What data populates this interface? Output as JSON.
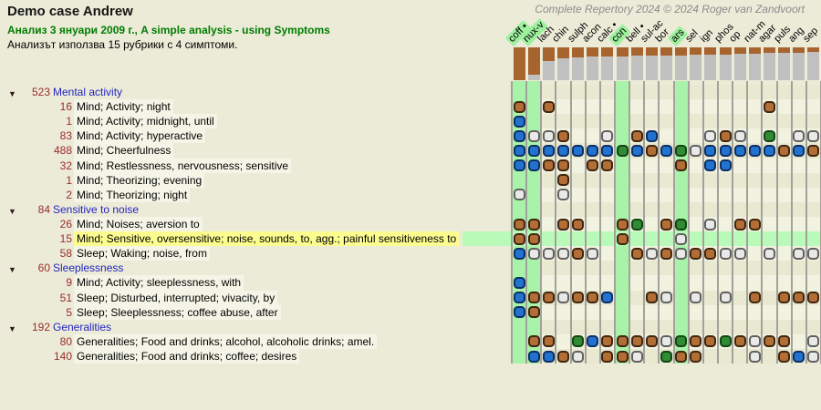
{
  "header": {
    "title": "Demo case Andrew",
    "subtitle": "Анализ 3 януари 2009 г., A simple analysis - using Symptoms",
    "info": "Анализът използва 15 рубрики с 4 симптоми.",
    "copyright": "Complete Repertory 2024 © 2024 Roger van Zandvoort"
  },
  "colors": {
    "page_bg": "#ebebd8",
    "stripe_even": "#e9e9d2",
    "stripe_odd": "#f2f2e0",
    "column_highlight_green": "#a9f2a9",
    "header_highlight_green": "#9df09d",
    "selected_row_yellow": "#fcfc8f",
    "selected_row_green": "#b9fab9",
    "grid_line": "#a2a29a",
    "bar_brown": "#a8642f",
    "bar_grey": "#c0c0c0",
    "count_text": "#9a2b2b",
    "group_text": "#2424c0",
    "subtitle_green": "#007d00",
    "grades": {
      "brown": {
        "fill": "#b26e35",
        "border": "#402611"
      },
      "blue": {
        "fill": "#2173cf",
        "border": "#0e2f63"
      },
      "white": {
        "fill": "#e9e9e7",
        "border": "#606060"
      },
      "green": {
        "fill": "#2f8c34",
        "border": "#144512"
      }
    }
  },
  "remedies": [
    {
      "abbr": "coff",
      "bullet": true,
      "highlighted": true,
      "bar": 1.0
    },
    {
      "abbr": "nux-v",
      "bullet": false,
      "highlighted": true,
      "bar": 0.83
    },
    {
      "abbr": "lach",
      "bullet": false,
      "highlighted": false,
      "bar": 0.42
    },
    {
      "abbr": "chin",
      "bullet": false,
      "highlighted": false,
      "bar": 0.33
    },
    {
      "abbr": "sulph",
      "bullet": false,
      "highlighted": false,
      "bar": 0.3
    },
    {
      "abbr": "acon",
      "bullet": false,
      "highlighted": false,
      "bar": 0.28
    },
    {
      "abbr": "calc",
      "bullet": true,
      "highlighted": false,
      "bar": 0.28
    },
    {
      "abbr": "con",
      "bullet": false,
      "highlighted": true,
      "bar": 0.27
    },
    {
      "abbr": "bell",
      "bullet": true,
      "highlighted": false,
      "bar": 0.26
    },
    {
      "abbr": "sul-ac",
      "bullet": false,
      "highlighted": false,
      "bar": 0.25
    },
    {
      "abbr": "bor",
      "bullet": false,
      "highlighted": false,
      "bar": 0.25
    },
    {
      "abbr": "ars",
      "bullet": false,
      "highlighted": true,
      "bar": 0.24
    },
    {
      "abbr": "sel",
      "bullet": false,
      "highlighted": false,
      "bar": 0.22
    },
    {
      "abbr": "ign",
      "bullet": false,
      "highlighted": false,
      "bar": 0.22
    },
    {
      "abbr": "phos",
      "bullet": false,
      "highlighted": false,
      "bar": 0.21
    },
    {
      "abbr": "op",
      "bullet": false,
      "highlighted": false,
      "bar": 0.2
    },
    {
      "abbr": "nat-m",
      "bullet": false,
      "highlighted": false,
      "bar": 0.19
    },
    {
      "abbr": "agar",
      "bullet": false,
      "highlighted": false,
      "bar": 0.18
    },
    {
      "abbr": "puls",
      "bullet": false,
      "highlighted": false,
      "bar": 0.17
    },
    {
      "abbr": "ang",
      "bullet": false,
      "highlighted": false,
      "bar": 0.16
    },
    {
      "abbr": "sep",
      "bullet": false,
      "highlighted": false,
      "bar": 0.15
    }
  ],
  "groups": [
    {
      "count": 523,
      "label": "Mental activity",
      "rubrics": [
        {
          "count": 16,
          "text": "Mind; Activity; night",
          "dots": [
            [
              1,
              "brown"
            ],
            [
              3,
              "brown"
            ],
            [
              18,
              "brown"
            ]
          ]
        },
        {
          "count": 1,
          "text": "Mind; Activity; midnight, until",
          "dots": [
            [
              1,
              "blue"
            ]
          ]
        },
        {
          "count": 83,
          "text": "Mind; Activity; hyperactive",
          "dots": [
            [
              1,
              "blue"
            ],
            [
              2,
              "white"
            ],
            [
              3,
              "white"
            ],
            [
              4,
              "brown"
            ],
            [
              7,
              "white"
            ],
            [
              9,
              "brown"
            ],
            [
              10,
              "blue"
            ],
            [
              14,
              "white"
            ],
            [
              15,
              "brown"
            ],
            [
              16,
              "white"
            ],
            [
              18,
              "green"
            ],
            [
              20,
              "white"
            ],
            [
              21,
              "white"
            ]
          ]
        },
        {
          "count": 488,
          "text": "Mind; Cheerfulness",
          "dots": [
            [
              1,
              "blue"
            ],
            [
              2,
              "blue"
            ],
            [
              3,
              "blue"
            ],
            [
              4,
              "blue"
            ],
            [
              5,
              "blue"
            ],
            [
              6,
              "blue"
            ],
            [
              7,
              "blue"
            ],
            [
              8,
              "green"
            ],
            [
              9,
              "blue"
            ],
            [
              10,
              "brown"
            ],
            [
              11,
              "blue"
            ],
            [
              12,
              "green"
            ],
            [
              13,
              "white"
            ],
            [
              14,
              "blue"
            ],
            [
              15,
              "blue"
            ],
            [
              16,
              "blue"
            ],
            [
              17,
              "blue"
            ],
            [
              18,
              "blue"
            ],
            [
              19,
              "brown"
            ],
            [
              20,
              "blue"
            ],
            [
              21,
              "brown"
            ]
          ]
        },
        {
          "count": 32,
          "text": "Mind; Restlessness, nervousness; sensitive",
          "dots": [
            [
              1,
              "blue"
            ],
            [
              2,
              "blue"
            ],
            [
              3,
              "brown"
            ],
            [
              4,
              "brown"
            ],
            [
              6,
              "brown"
            ],
            [
              7,
              "brown"
            ],
            [
              12,
              "brown"
            ],
            [
              14,
              "blue"
            ],
            [
              15,
              "blue"
            ]
          ]
        },
        {
          "count": 1,
          "text": "Mind; Theorizing; evening",
          "dots": [
            [
              4,
              "brown"
            ]
          ]
        },
        {
          "count": 2,
          "text": "Mind; Theorizing; night",
          "dots": [
            [
              1,
              "white"
            ],
            [
              4,
              "white"
            ]
          ]
        }
      ]
    },
    {
      "count": 84,
      "label": "Sensitive to noise",
      "rubrics": [
        {
          "count": 26,
          "text": "Mind; Noises; aversion to",
          "dots": [
            [
              1,
              "brown"
            ],
            [
              2,
              "brown"
            ],
            [
              4,
              "brown"
            ],
            [
              5,
              "brown"
            ],
            [
              8,
              "brown"
            ],
            [
              9,
              "green"
            ],
            [
              11,
              "brown"
            ],
            [
              12,
              "green"
            ],
            [
              14,
              "white"
            ],
            [
              16,
              "brown"
            ],
            [
              17,
              "brown"
            ]
          ]
        },
        {
          "count": 15,
          "text": "Mind; Sensitive, oversensitive; noise, sounds, to, agg.; painful sensitiveness to",
          "highlighted": true,
          "dots": [
            [
              1,
              "brown"
            ],
            [
              2,
              "brown"
            ],
            [
              8,
              "brown"
            ],
            [
              12,
              "white"
            ]
          ]
        },
        {
          "count": 58,
          "text": "Sleep; Waking; noise, from",
          "dots": [
            [
              1,
              "blue"
            ],
            [
              2,
              "white"
            ],
            [
              3,
              "white"
            ],
            [
              4,
              "white"
            ],
            [
              5,
              "brown"
            ],
            [
              6,
              "white"
            ],
            [
              9,
              "brown"
            ],
            [
              10,
              "white"
            ],
            [
              11,
              "brown"
            ],
            [
              12,
              "white"
            ],
            [
              13,
              "brown"
            ],
            [
              14,
              "brown"
            ],
            [
              15,
              "white"
            ],
            [
              16,
              "white"
            ],
            [
              18,
              "white"
            ],
            [
              20,
              "white"
            ],
            [
              21,
              "white"
            ]
          ]
        }
      ]
    },
    {
      "count": 60,
      "label": "Sleeplessness",
      "rubrics": [
        {
          "count": 9,
          "text": "Mind; Activity; sleeplessness, with",
          "dots": [
            [
              1,
              "blue"
            ]
          ]
        },
        {
          "count": 51,
          "text": "Sleep; Disturbed, interrupted; vivacity, by",
          "dots": [
            [
              1,
              "blue"
            ],
            [
              2,
              "brown"
            ],
            [
              3,
              "brown"
            ],
            [
              4,
              "white"
            ],
            [
              5,
              "brown"
            ],
            [
              6,
              "brown"
            ],
            [
              7,
              "blue"
            ],
            [
              10,
              "brown"
            ],
            [
              11,
              "white"
            ],
            [
              13,
              "white"
            ],
            [
              15,
              "white"
            ],
            [
              17,
              "brown"
            ],
            [
              19,
              "brown"
            ],
            [
              20,
              "brown"
            ],
            [
              21,
              "brown"
            ]
          ]
        },
        {
          "count": 5,
          "text": "Sleep; Sleeplessness; coffee abuse, after",
          "dots": [
            [
              1,
              "blue"
            ],
            [
              2,
              "brown"
            ]
          ]
        }
      ]
    },
    {
      "count": 192,
      "label": "Generalities",
      "rubrics": [
        {
          "count": 80,
          "text": "Generalities; Food and drinks; alcohol, alcoholic drinks; amel.",
          "dots": [
            [
              2,
              "brown"
            ],
            [
              3,
              "brown"
            ],
            [
              5,
              "green"
            ],
            [
              6,
              "blue"
            ],
            [
              7,
              "brown"
            ],
            [
              8,
              "brown"
            ],
            [
              9,
              "brown"
            ],
            [
              10,
              "brown"
            ],
            [
              11,
              "white"
            ],
            [
              12,
              "green"
            ],
            [
              13,
              "brown"
            ],
            [
              14,
              "brown"
            ],
            [
              15,
              "green"
            ],
            [
              16,
              "brown"
            ],
            [
              17,
              "white"
            ],
            [
              18,
              "brown"
            ],
            [
              19,
              "brown"
            ],
            [
              21,
              "white"
            ]
          ]
        },
        {
          "count": 140,
          "text": "Generalities; Food and drinks; coffee; desires",
          "dots": [
            [
              2,
              "blue"
            ],
            [
              3,
              "blue"
            ],
            [
              4,
              "brown"
            ],
            [
              5,
              "white"
            ],
            [
              7,
              "brown"
            ],
            [
              8,
              "brown"
            ],
            [
              9,
              "white"
            ],
            [
              11,
              "green"
            ],
            [
              12,
              "brown"
            ],
            [
              13,
              "brown"
            ],
            [
              17,
              "white"
            ],
            [
              19,
              "brown"
            ],
            [
              20,
              "blue"
            ],
            [
              21,
              "white"
            ]
          ]
        }
      ]
    }
  ]
}
